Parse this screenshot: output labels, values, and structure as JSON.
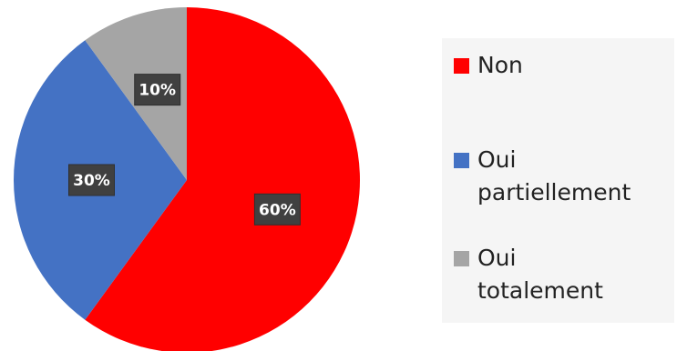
{
  "chart_data": {
    "type": "pie",
    "slices": [
      {
        "label": "Non",
        "value": 60,
        "display": "60%",
        "color": "#ff0000"
      },
      {
        "label": "Oui partiellement",
        "legend_display": "Oui\npartiellement",
        "value": 30,
        "display": "30%",
        "color": "#4472c4"
      },
      {
        "label": "Oui totalement",
        "legend_display": "Oui\ntotalement",
        "value": 10,
        "display": "10%",
        "color": "#a5a5a5"
      }
    ],
    "legend_position": "right",
    "start_angle": "top",
    "direction": "clockwise"
  }
}
